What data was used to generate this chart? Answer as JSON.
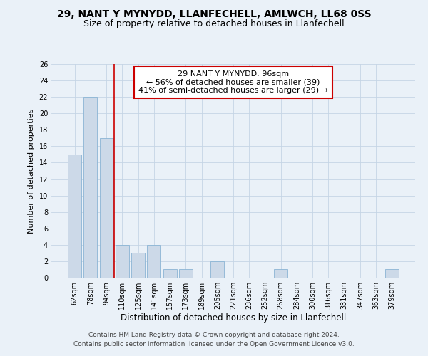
{
  "title1": "29, NANT Y MYNYDD, LLANFECHELL, AMLWCH, LL68 0SS",
  "title2": "Size of property relative to detached houses in Llanfechell",
  "xlabel": "Distribution of detached houses by size in Llanfechell",
  "ylabel": "Number of detached properties",
  "categories": [
    "62sqm",
    "78sqm",
    "94sqm",
    "110sqm",
    "125sqm",
    "141sqm",
    "157sqm",
    "173sqm",
    "189sqm",
    "205sqm",
    "221sqm",
    "236sqm",
    "252sqm",
    "268sqm",
    "284sqm",
    "300sqm",
    "316sqm",
    "331sqm",
    "347sqm",
    "363sqm",
    "379sqm"
  ],
  "values": [
    15,
    22,
    17,
    4,
    3,
    4,
    1,
    1,
    0,
    2,
    0,
    0,
    0,
    1,
    0,
    0,
    0,
    0,
    0,
    0,
    1
  ],
  "bar_color": "#ccd9e8",
  "bar_edge_color": "#8ab4d4",
  "vline_x_idx": 2.5,
  "vline_color": "#cc0000",
  "annotation_line1": "29 NANT Y MYNYDD: 96sqm",
  "annotation_line2": "← 56% of detached houses are smaller (39)",
  "annotation_line3": "41% of semi-detached houses are larger (29) →",
  "annotation_box_facecolor": "#ffffff",
  "annotation_box_edgecolor": "#cc0000",
  "ylim": [
    0,
    26
  ],
  "yticks": [
    0,
    2,
    4,
    6,
    8,
    10,
    12,
    14,
    16,
    18,
    20,
    22,
    24,
    26
  ],
  "footer_line1": "Contains HM Land Registry data © Crown copyright and database right 2024.",
  "footer_line2": "Contains public sector information licensed under the Open Government Licence v3.0.",
  "background_color": "#eaf1f8",
  "grid_color": "#c5d5e5",
  "title1_fontsize": 10,
  "title2_fontsize": 9,
  "xlabel_fontsize": 8.5,
  "ylabel_fontsize": 8,
  "tick_fontsize": 7,
  "footer_fontsize": 6.5,
  "annotation_fontsize": 8
}
